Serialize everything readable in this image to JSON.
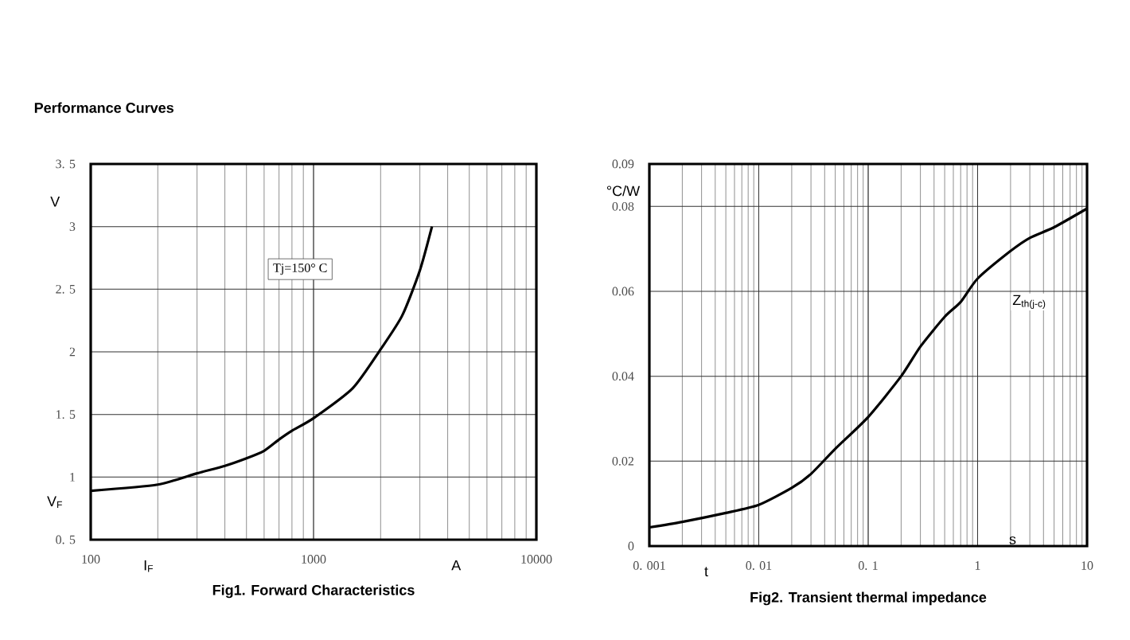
{
  "chart_data": [
    {
      "type": "line",
      "title": "Fig1. Forward Characteristics",
      "xlabel": "I$_{F}$",
      "ylabel": "V$_{F}$",
      "annotations": [
        "Performance Curves",
        "Tj=150° C",
        "V",
        "A"
      ],
      "log": "x",
      "grid": true,
      "xlim": [
        100,
        10000
      ],
      "xticks": [
        100,
        1000,
        10000
      ],
      "ylim": [
        0.5,
        3.5
      ],
      "yticks": [
        {
          "value": 0.5,
          "label": "0. 5"
        },
        1,
        {
          "value": 1.5,
          "label": "1. 5"
        },
        2,
        {
          "value": 2.5,
          "label": "2. 5"
        },
        3,
        {
          "value": 3.5,
          "label": "3. 5"
        }
      ],
      "series": [
        {
          "color": "#000000",
          "x": [
            100,
            200,
            300,
            400,
            500,
            600,
            700,
            800,
            1000,
            1500,
            2000,
            2500,
            3000,
            3400
          ],
          "values": [
            0.89,
            0.94,
            1.03,
            1.09,
            1.15,
            1.21,
            1.3,
            1.37,
            1.47,
            1.71,
            2.02,
            2.29,
            2.65,
            3.0
          ]
        }
      ]
    },
    {
      "type": "line",
      "title": "Fig2. Transient thermal impedance",
      "xlabel": "t",
      "ylabel": "°C/W",
      "annotations": [
        "s"
      ],
      "log": "x",
      "grid": true,
      "xlim": [
        0.001,
        10
      ],
      "xticks": [
        {
          "value": 0.001,
          "label": "0. 001"
        },
        {
          "value": 0.01,
          "label": "0. 01"
        },
        {
          "value": 0.1,
          "label": "0. 1"
        },
        1,
        10
      ],
      "ylim": [
        0,
        0.09
      ],
      "yticks": [
        0,
        0.02,
        0.04,
        0.06,
        0.08,
        0.09
      ],
      "series": [
        {
          "name": "Z$_{th(j-c)}$",
          "color": "#000000",
          "x": [
            0.001,
            0.002,
            0.005,
            0.01,
            0.02,
            0.03,
            0.05,
            0.1,
            0.2,
            0.3,
            0.5,
            0.7,
            1,
            2,
            3,
            5,
            10
          ],
          "values": [
            0.0044,
            0.0057,
            0.0078,
            0.0097,
            0.0137,
            0.017,
            0.0229,
            0.0304,
            0.04,
            0.047,
            0.054,
            0.0575,
            0.063,
            0.0695,
            0.0726,
            0.0751,
            0.0795
          ]
        }
      ]
    }
  ]
}
